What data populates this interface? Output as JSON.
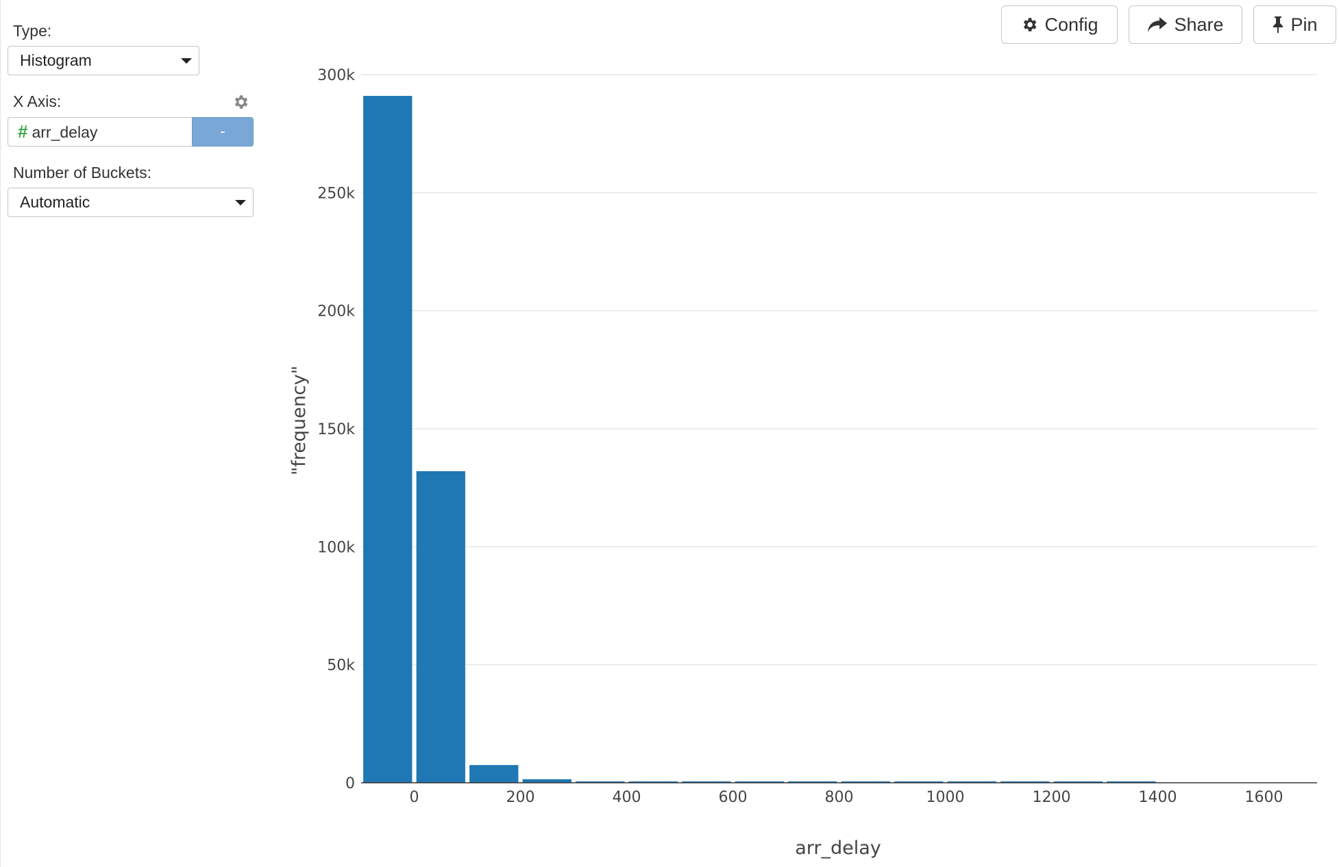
{
  "panel": {
    "type_label": "Type:",
    "type_value": "Histogram",
    "xaxis_label": "X Axis:",
    "xaxis_value": "arr_delay",
    "xaxis_remove": "-",
    "buckets_label": "Number of Buckets:",
    "buckets_value": "Automatic"
  },
  "toolbar": {
    "config_label": "Config",
    "share_label": "Share",
    "pin_label": "Pin"
  },
  "colors": {
    "bar": "#1f77b4",
    "accent_button": "#7aa8d6",
    "numeric_hash": "#3ea84a"
  },
  "chart_data": {
    "type": "bar",
    "xlabel": "arr_delay",
    "ylabel": "\"frequency\"",
    "xlim": [
      -100,
      1700
    ],
    "ylim": [
      0,
      300000
    ],
    "x_ticks": [
      0,
      200,
      400,
      600,
      800,
      1000,
      1200,
      1400,
      1600
    ],
    "x_tick_labels": [
      "0",
      "200",
      "400",
      "600",
      "800",
      "1000",
      "1200",
      "1400",
      "1600"
    ],
    "y_ticks": [
      0,
      50000,
      100000,
      150000,
      200000,
      250000,
      300000
    ],
    "y_tick_labels": [
      "0",
      "50k",
      "100k",
      "150k",
      "200k",
      "250k",
      "300k"
    ],
    "grid": true,
    "bin_width": 100,
    "bins": [
      {
        "x0": -100,
        "x1": 0,
        "value": 291000
      },
      {
        "x0": 0,
        "x1": 100,
        "value": 132000
      },
      {
        "x0": 100,
        "x1": 200,
        "value": 7500
      },
      {
        "x0": 200,
        "x1": 300,
        "value": 1500
      },
      {
        "x0": 300,
        "x1": 400,
        "value": 400
      },
      {
        "x0": 400,
        "x1": 500,
        "value": 200
      },
      {
        "x0": 500,
        "x1": 600,
        "value": 120
      },
      {
        "x0": 600,
        "x1": 700,
        "value": 80
      },
      {
        "x0": 700,
        "x1": 800,
        "value": 60
      },
      {
        "x0": 800,
        "x1": 900,
        "value": 40
      },
      {
        "x0": 900,
        "x1": 1000,
        "value": 30
      },
      {
        "x0": 1000,
        "x1": 1100,
        "value": 20
      },
      {
        "x0": 1100,
        "x1": 1200,
        "value": 15
      },
      {
        "x0": 1200,
        "x1": 1300,
        "value": 10
      },
      {
        "x0": 1300,
        "x1": 1400,
        "value": 5
      }
    ]
  }
}
